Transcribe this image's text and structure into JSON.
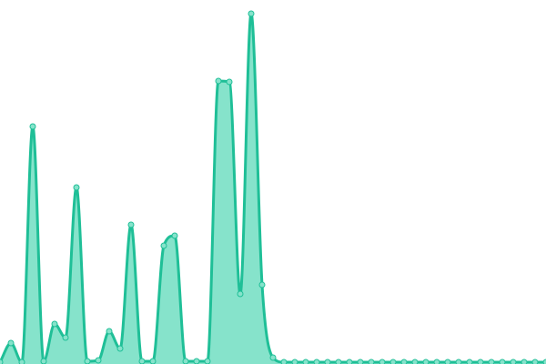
{
  "chart_data": {
    "type": "area",
    "values": [
      2,
      23,
      2,
      261,
      3,
      44,
      29,
      194,
      3,
      4,
      36,
      17,
      153,
      3,
      3,
      130,
      141,
      3,
      3,
      3,
      311,
      310,
      77,
      385,
      87,
      7,
      2,
      2,
      2,
      2,
      2,
      2,
      2,
      2,
      2,
      2,
      2,
      2,
      2,
      2,
      2,
      2,
      2,
      2,
      2,
      2,
      2,
      2,
      2,
      2,
      2
    ],
    "color": "#1fbf97",
    "fill_color": "#86e3cb",
    "ylim": [
      0,
      400
    ]
  }
}
